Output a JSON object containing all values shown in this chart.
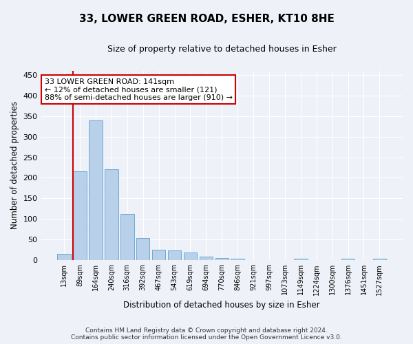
{
  "title": "33, LOWER GREEN ROAD, ESHER, KT10 8HE",
  "subtitle": "Size of property relative to detached houses in Esher",
  "xlabel": "Distribution of detached houses by size in Esher",
  "ylabel": "Number of detached properties",
  "bin_labels": [
    "13sqm",
    "89sqm",
    "164sqm",
    "240sqm",
    "316sqm",
    "392sqm",
    "467sqm",
    "543sqm",
    "619sqm",
    "694sqm",
    "770sqm",
    "846sqm",
    "921sqm",
    "997sqm",
    "1073sqm",
    "1149sqm",
    "1224sqm",
    "1300sqm",
    "1376sqm",
    "1451sqm",
    "1527sqm"
  ],
  "bar_heights": [
    15,
    215,
    340,
    220,
    112,
    53,
    25,
    24,
    19,
    8,
    5,
    3,
    0,
    0,
    0,
    3,
    0,
    0,
    3,
    0,
    3
  ],
  "bar_color": "#b8d0ea",
  "bar_edge_color": "#6aaad4",
  "highlight_bar_index": 1,
  "highlight_color": "#cc0000",
  "property_size": 141,
  "annotation_line1": "33 LOWER GREEN ROAD: 141sqm",
  "annotation_line2": "← 12% of detached houses are smaller (121)",
  "annotation_line3": "88% of semi-detached houses are larger (910) →",
  "annotation_box_color": "#ffffff",
  "annotation_box_edge_color": "#cc0000",
  "ylim": [
    0,
    460
  ],
  "yticks": [
    0,
    50,
    100,
    150,
    200,
    250,
    300,
    350,
    400,
    450
  ],
  "footer_line1": "Contains HM Land Registry data © Crown copyright and database right 2024.",
  "footer_line2": "Contains public sector information licensed under the Open Government Licence v3.0.",
  "background_color": "#eef2f8",
  "grid_color": "#ffffff",
  "title_fontsize": 11,
  "subtitle_fontsize": 9,
  "axis_label_fontsize": 8.5,
  "tick_fontsize": 8,
  "annotation_fontsize": 8,
  "footer_fontsize": 6.5
}
